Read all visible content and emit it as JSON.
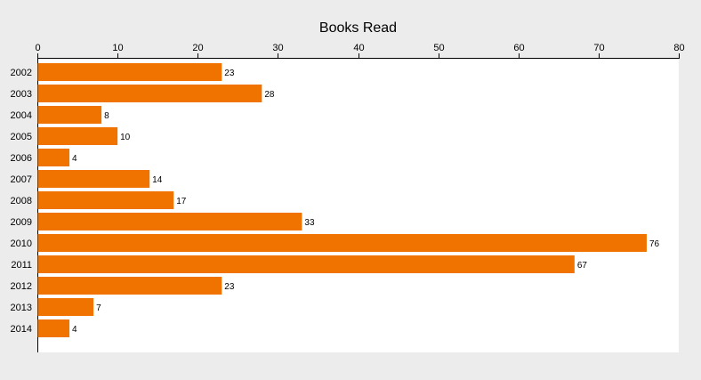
{
  "chart_data": {
    "type": "bar",
    "orientation": "horizontal",
    "title": "Books Read",
    "xlabel": "",
    "ylabel": "",
    "categories": [
      "2002",
      "2003",
      "2004",
      "2005",
      "2006",
      "2007",
      "2008",
      "2009",
      "2010",
      "2011",
      "2012",
      "2013",
      "2014"
    ],
    "values": [
      23,
      28,
      8,
      10,
      4,
      14,
      17,
      33,
      76,
      67,
      23,
      7,
      4
    ],
    "xlim": [
      0,
      80
    ],
    "x_ticks": [
      0,
      10,
      20,
      30,
      40,
      50,
      60,
      70,
      80
    ],
    "x_axis_position": "top",
    "grid": false,
    "legend": "none",
    "data_labels": true,
    "colors": {
      "bar": "#f07300",
      "plot_background": "#ffffff",
      "page_background": "#ececec",
      "axis": "#000000",
      "text": "#000000"
    }
  }
}
